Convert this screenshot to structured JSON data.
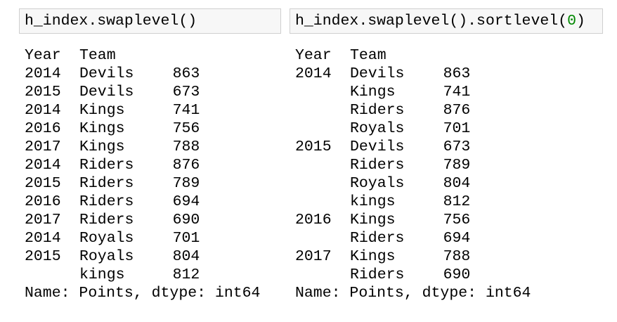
{
  "panels": [
    {
      "code": [
        {
          "text": "h_index.swaplevel()",
          "color": "#000000"
        }
      ],
      "header": [
        "Year",
        "Team"
      ],
      "rows": [
        [
          "2014",
          "Devils",
          "863"
        ],
        [
          "2015",
          "Devils",
          "673"
        ],
        [
          "2014",
          "Kings",
          "741"
        ],
        [
          "2016",
          "Kings",
          "756"
        ],
        [
          "2017",
          "Kings",
          "788"
        ],
        [
          "2014",
          "Riders",
          "876"
        ],
        [
          "2015",
          "Riders",
          "789"
        ],
        [
          "2016",
          "Riders",
          "694"
        ],
        [
          "2017",
          "Riders",
          "690"
        ],
        [
          "2014",
          "Royals",
          "701"
        ],
        [
          "2015",
          "Royals",
          "804"
        ],
        [
          null,
          "kings",
          "812"
        ]
      ],
      "footer": "Name: Points, dtype: int64"
    },
    {
      "code": [
        {
          "text": "h_index.swaplevel().sortlevel(",
          "color": "#000000"
        },
        {
          "text": "0",
          "color": "#008800"
        },
        {
          "text": ")",
          "color": "#000000"
        }
      ],
      "header": [
        "Year",
        "Team"
      ],
      "rows": [
        [
          "2014",
          "Devils",
          "863"
        ],
        [
          null,
          "Kings",
          "741"
        ],
        [
          null,
          "Riders",
          "876"
        ],
        [
          null,
          "Royals",
          "701"
        ],
        [
          "2015",
          "Devils",
          "673"
        ],
        [
          null,
          "Riders",
          "789"
        ],
        [
          null,
          "Royals",
          "804"
        ],
        [
          null,
          "kings",
          "812"
        ],
        [
          "2016",
          "Kings",
          "756"
        ],
        [
          null,
          "Riders",
          "694"
        ],
        [
          "2017",
          "Kings",
          "788"
        ],
        [
          null,
          "Riders",
          "690"
        ]
      ],
      "footer": "Name: Points, dtype: int64"
    }
  ]
}
